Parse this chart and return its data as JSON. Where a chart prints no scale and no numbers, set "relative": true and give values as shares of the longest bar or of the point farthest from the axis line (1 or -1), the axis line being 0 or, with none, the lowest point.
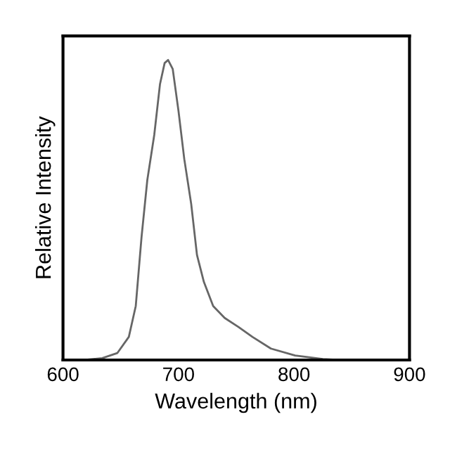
{
  "chart_data": {
    "type": "line",
    "xlabel": "Wavelength (nm)",
    "ylabel": "Relative Intensity",
    "relative": true,
    "xlim": [
      600,
      900
    ],
    "xticks": [
      600,
      700,
      800,
      900
    ],
    "grid": false,
    "legend": false,
    "line_style": "solid",
    "marker": "none",
    "series": [
      {
        "color": "#666666",
        "x": [
          618,
          634,
          647,
          657,
          663,
          668,
          673,
          679,
          684,
          688,
          691,
          695,
          700,
          705,
          711,
          716,
          722,
          730,
          740,
          752,
          764,
          780,
          801,
          825,
          841
        ],
        "values": [
          0,
          0.006,
          0.023,
          0.077,
          0.18,
          0.41,
          0.6,
          0.75,
          0.92,
          0.99,
          1,
          0.97,
          0.83,
          0.67,
          0.52,
          0.35,
          0.26,
          0.18,
          0.14,
          0.11,
          0.077,
          0.038,
          0.015,
          0.003,
          0
        ]
      }
    ]
  }
}
